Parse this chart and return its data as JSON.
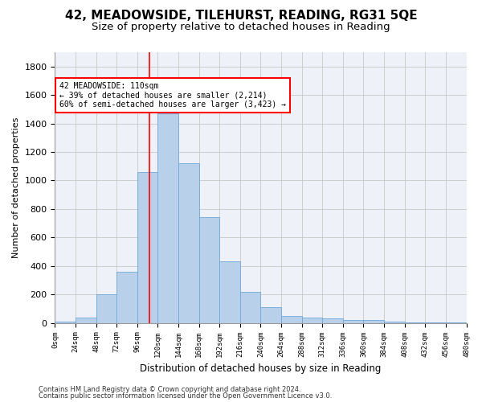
{
  "title": "42, MEADOWSIDE, TILEHURST, READING, RG31 5QE",
  "subtitle": "Size of property relative to detached houses in Reading",
  "xlabel": "Distribution of detached houses by size in Reading",
  "ylabel": "Number of detached properties",
  "footer_line1": "Contains HM Land Registry data © Crown copyright and database right 2024.",
  "footer_line2": "Contains public sector information licensed under the Open Government Licence v3.0.",
  "bin_edges": [
    0,
    24,
    48,
    72,
    96,
    120,
    144,
    168,
    192,
    216,
    240,
    264,
    288,
    312,
    336,
    360,
    384,
    408,
    432,
    456,
    480
  ],
  "bar_values": [
    10,
    35,
    200,
    360,
    1060,
    1470,
    1120,
    745,
    435,
    220,
    110,
    50,
    40,
    30,
    20,
    20,
    10,
    5,
    5,
    5
  ],
  "bar_color": "#b8d0ea",
  "bar_edge_color": "#6ea8d8",
  "vline_x": 110,
  "vline_color": "red",
  "annotation_text": "42 MEADOWSIDE: 110sqm\n← 39% of detached houses are smaller (2,214)\n60% of semi-detached houses are larger (3,423) →",
  "annotation_box_color": "white",
  "annotation_box_edgecolor": "red",
  "ylim": [
    0,
    1900
  ],
  "yticks": [
    0,
    200,
    400,
    600,
    800,
    1000,
    1200,
    1400,
    1600,
    1800
  ],
  "bg_color": "#eef2f8",
  "grid_color": "#c8c8c8",
  "title_fontsize": 11,
  "subtitle_fontsize": 9.5,
  "xlabel_fontsize": 8.5,
  "ylabel_fontsize": 8,
  "tick_labels": [
    "0sqm",
    "24sqm",
    "48sqm",
    "72sqm",
    "96sqm",
    "120sqm",
    "144sqm",
    "168sqm",
    "192sqm",
    "216sqm",
    "240sqm",
    "264sqm",
    "288sqm",
    "312sqm",
    "336sqm",
    "360sqm",
    "384sqm",
    "408sqm",
    "432sqm",
    "456sqm",
    "480sqm"
  ]
}
